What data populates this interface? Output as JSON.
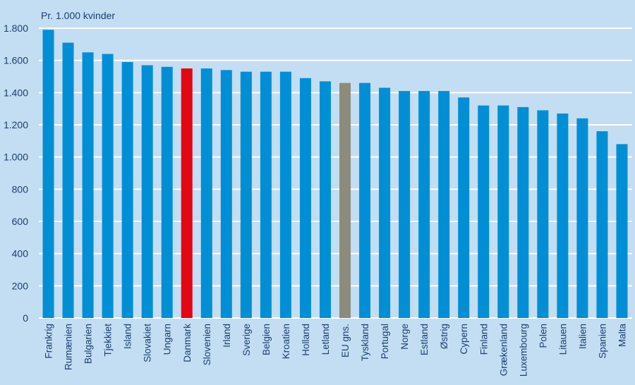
{
  "chart_data": {
    "type": "bar",
    "title": "",
    "unit_label": "Pr. 1.000 kvinder",
    "xlabel": "",
    "ylabel": "Pr. 1.000 kvinder",
    "ylim": [
      0,
      1800
    ],
    "yticks": [
      0,
      200,
      400,
      600,
      800,
      1000,
      1200,
      1400,
      1600,
      1800
    ],
    "ytick_labels": [
      "0",
      "200",
      "400",
      "600",
      "800",
      "1.000",
      "1.200",
      "1.400",
      "1.600",
      "1.800"
    ],
    "grid": true,
    "categories": [
      "Frankrig",
      "Rumænien",
      "Bulgarien",
      "Tjekkiet",
      "Island",
      "Slovakiet",
      "Ungarn",
      "Danmark",
      "Slovenien",
      "Irland",
      "Sverige",
      "Belgien",
      "Kroatien",
      "Holland",
      "Letland",
      "EU gns.",
      "Tyskland",
      "Portugal",
      "Norge",
      "Estland",
      "Østrig",
      "Cypern",
      "Finland",
      "Grækenland",
      "Luxembourg",
      "Polen",
      "Litauen",
      "Italien",
      "Spanien",
      "Malta"
    ],
    "values": [
      1790,
      1710,
      1650,
      1640,
      1590,
      1570,
      1560,
      1550,
      1550,
      1540,
      1530,
      1530,
      1530,
      1490,
      1470,
      1460,
      1460,
      1430,
      1410,
      1410,
      1410,
      1370,
      1320,
      1320,
      1310,
      1290,
      1270,
      1240,
      1160,
      1080
    ],
    "highlight": {
      "Danmark": "#e30613",
      "EU gns.": "#8c8c7c"
    },
    "colors": {
      "bar": "#008fd5",
      "background": "#c3ddf3",
      "grid": "#ffffff",
      "text": "#1a3f6e"
    }
  }
}
